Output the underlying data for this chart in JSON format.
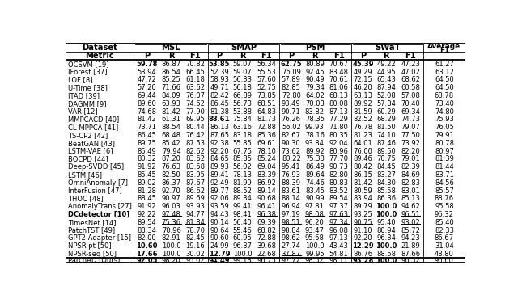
{
  "rows": [
    [
      "OCSVM [19]",
      "59.78",
      "86.87",
      "70.82",
      "53.85",
      "59.07",
      "56.34",
      "62.75",
      "80.89",
      "70.67",
      "45.39",
      "49.22",
      "47.23",
      "61.27"
    ],
    [
      "IForest [37]",
      "53.94",
      "86.54",
      "66.45",
      "52.39",
      "59.07",
      "55.53",
      "76.09",
      "92.45",
      "83.48",
      "49.29",
      "44.95",
      "47.02",
      "63.12"
    ],
    [
      "LOF [8]",
      "47.72",
      "85.25",
      "61.18",
      "58.93",
      "56.33",
      "57.60",
      "57.89",
      "90.49",
      "70.61",
      "72.15",
      "65.43",
      "68.62",
      "64.50"
    ],
    [
      "U-Time [38]",
      "57.20",
      "71.66",
      "63.62",
      "49.71",
      "56.18",
      "52.75",
      "82.85",
      "79.34",
      "81.06",
      "46.20",
      "87.94",
      "60.58",
      "64.50"
    ],
    [
      "ITAD [39]",
      "69.44",
      "84.09",
      "76.07",
      "82.42",
      "66.89",
      "73.85",
      "72.80",
      "64.02",
      "68.13",
      "63.13",
      "52.08",
      "57.08",
      "68.78"
    ],
    [
      "DAGMM [9]",
      "89.60",
      "63.93",
      "74.62",
      "86.45",
      "56.73",
      "68.51",
      "93.49",
      "70.03",
      "80.08",
      "89.92",
      "57.84",
      "70.40",
      "73.40"
    ],
    [
      "VAR [12]",
      "74.68",
      "81.42",
      "77.90",
      "81.38",
      "53.88",
      "64.83",
      "90.71",
      "83.82",
      "87.13",
      "81.59",
      "60.29",
      "69.34",
      "74.80"
    ],
    [
      "MMPCACD [40]",
      "81.42",
      "61.31",
      "69.95",
      "88.61",
      "75.84",
      "81.73",
      "76.26",
      "78.35",
      "77.29",
      "82.52",
      "68.29",
      "74.73",
      "75.93"
    ],
    [
      "CL-MPPCA [41]",
      "73.71",
      "88.54",
      "80.44",
      "86.13",
      "63.16",
      "72.88",
      "56.02",
      "99.93",
      "71.80",
      "76.78",
      "81.50",
      "79.07",
      "76.05"
    ],
    [
      "TS-CP2 [42]",
      "86.45",
      "68.48",
      "76.42",
      "87.65",
      "83.18",
      "85.36",
      "82.67",
      "78.16",
      "80.35",
      "81.23",
      "74.10",
      "77.50",
      "79.91"
    ],
    [
      "BeatGAN [43]",
      "89.75",
      "85.42",
      "87.53",
      "92.38",
      "55.85",
      "69.61",
      "90.30",
      "93.84",
      "92.04",
      "64.01",
      "87.46",
      "73.92",
      "80.78"
    ],
    [
      "LSTM-VAE [6]",
      "85.49",
      "79.94",
      "82.62",
      "92.20",
      "67.75",
      "78.10",
      "73.62",
      "89.92",
      "80.96",
      "76.00",
      "89.50",
      "82.20",
      "80.97"
    ],
    [
      "BOCPD [44]",
      "80.32",
      "87.20",
      "83.62",
      "84.65",
      "85.85",
      "85.24",
      "80.22",
      "75.33",
      "77.70",
      "89.46",
      "70.75",
      "79.01",
      "81.39"
    ],
    [
      "Deep-SVDD [45]",
      "91.92",
      "76.63",
      "83.58",
      "89.93",
      "56.02",
      "69.04",
      "95.41",
      "86.49",
      "90.73",
      "80.42",
      "84.45",
      "82.39",
      "81.44"
    ],
    [
      "LSTM [46]",
      "85.45",
      "82.50",
      "83.95",
      "89.41",
      "78.13",
      "83.39",
      "76.93",
      "89.64",
      "82.80",
      "86.15",
      "83.27",
      "84.69",
      "83.71"
    ],
    [
      "OmniAnomaly [7]",
      "89.02",
      "86.37",
      "87.67",
      "92.49",
      "81.99",
      "86.92",
      "88.39",
      "74.46",
      "80.83",
      "81.42",
      "84.30",
      "82.83",
      "84.56"
    ],
    [
      "InterFusion [47]",
      "81.28",
      "92.70",
      "86.62",
      "89.77",
      "88.52",
      "89.14",
      "83.61",
      "83.45",
      "83.52",
      "80.59",
      "85.58",
      "83.01",
      "85.57"
    ],
    [
      "THOC [48]",
      "88.45",
      "90.97",
      "89.69",
      "92.06",
      "89.34",
      "90.68",
      "88.14",
      "90.99",
      "89.54",
      "83.94",
      "86.36",
      "85.13",
      "88.76"
    ],
    [
      "AnomalyTrans [27]",
      "91.92",
      "96.03",
      "93.93",
      "93.59",
      "99.41",
      "96.41",
      "96.94",
      "97.81",
      "97.37",
      "89.79",
      "100.0",
      "94.62",
      "95.58"
    ],
    [
      "DCdetector [10]",
      "92.22",
      "97.48",
      "94.77",
      "94.43",
      "98.41",
      "96.38",
      "97.19",
      "98.08",
      "97.63",
      "93.25",
      "100.0",
      "96.51",
      "96.32"
    ],
    [
      "TimesNet [14]",
      "89.54",
      "75.36",
      "81.84",
      "90.14",
      "56.40",
      "69.39",
      "98.51",
      "96.20",
      "97.34",
      "90.75",
      "95.40",
      "93.02",
      "85.40"
    ],
    [
      "PatchTST [49]",
      "88.34",
      "70.96",
      "78.70",
      "90.64",
      "55.46",
      "68.82",
      "98.84",
      "93.47",
      "96.08",
      "91.10",
      "80.94",
      "85.72",
      "82.33"
    ],
    [
      "GPT2-Adapter [15]",
      "82.00",
      "82.91",
      "82.45",
      "90.60",
      "60.95",
      "72.88",
      "98.62",
      "95.68",
      "97.13",
      "92.20",
      "96.34",
      "94.23",
      "86.67"
    ],
    [
      "NPSR-pt [50]",
      "10.60",
      "100.0",
      "19.16",
      "24.99",
      "96.37",
      "39.68",
      "27.74",
      "100.0",
      "43.43",
      "12.29",
      "100.0",
      "21.89",
      "31.04"
    ],
    [
      "NPSR-seq [50]",
      "17.66",
      "100.0",
      "30.02",
      "12.79",
      "100.0",
      "22.68",
      "37.87",
      "99.95",
      "54.81",
      "86.76",
      "88.58",
      "87.66",
      "48.80"
    ]
  ],
  "patchad_row": [
    "PatchAD (Ours)",
    "92.05",
    "98.20",
    "95.02",
    "94.49",
    "99.13",
    "96.75",
    "97.72",
    "98.52",
    "98.11",
    "93.28",
    "100.0",
    "96.52",
    "96.60"
  ],
  "bold_cells": {
    "0": [
      1,
      4,
      7,
      10
    ],
    "7": [
      4
    ],
    "18": [
      11
    ],
    "19": [
      0,
      11
    ],
    "23": [
      1,
      10,
      11
    ],
    "24": [
      1,
      4
    ],
    "patchad": [
      1,
      4,
      10,
      11
    ]
  },
  "underline_cells": {
    "18": [
      5,
      6
    ],
    "19": [
      2,
      6,
      8,
      9,
      12
    ],
    "20": [
      2,
      3,
      7,
      9,
      10,
      12
    ],
    "24": [
      7
    ],
    "patchad": [
      0,
      2,
      5,
      8,
      12
    ]
  }
}
